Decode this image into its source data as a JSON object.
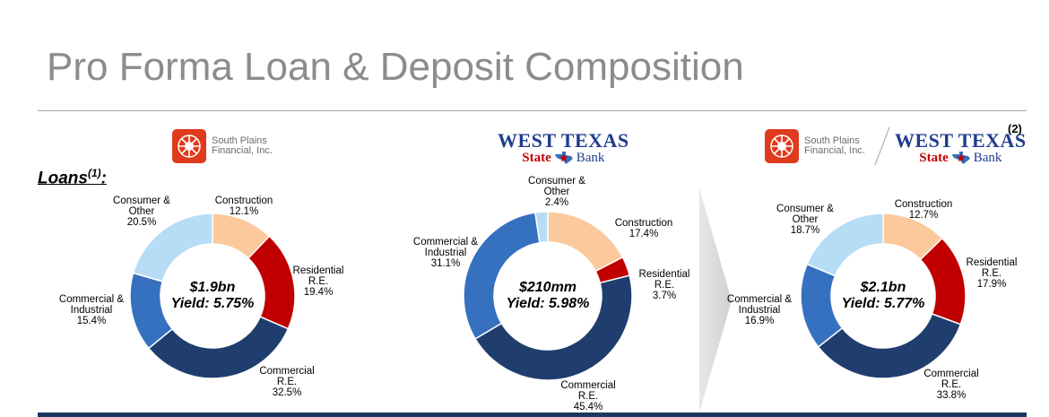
{
  "page": {
    "title": "Pro Forma Loan & Deposit Composition",
    "loans_label": "Loans",
    "loans_footnote": "(1)",
    "proforma_footnote": "(2)"
  },
  "logos": {
    "spf_line1": "South Plains",
    "spf_line2": "Financial, Inc.",
    "wt_top": "WEST TEXAS",
    "wt_state": "State",
    "wt_bank": "Bank"
  },
  "colors": {
    "construction": "#fcc99c",
    "residential": "#c00000",
    "commercial_re": "#1f3e6e",
    "commercial_industrial": "#3671c0",
    "consumer_other": "#b7dcf6",
    "bottom_bar": "#17375e",
    "title": "#8c8c8c"
  },
  "chart_data": [
    {
      "type": "pie",
      "donut": true,
      "entity": "South Plains Financial, Inc.",
      "center_value": "$1.9bn",
      "center_yield": "Yield: 5.75%",
      "categories": [
        "Construction",
        "Residential R.E.",
        "Commercial R.E.",
        "Commercial & Industrial",
        "Consumer & Other"
      ],
      "values": [
        12.1,
        19.4,
        32.5,
        15.4,
        20.5
      ],
      "labels": [
        {
          "lines": [
            "Construction",
            "12.1%"
          ]
        },
        {
          "lines": [
            "Residential",
            "R.E.",
            "19.4%"
          ]
        },
        {
          "lines": [
            "Commercial",
            "R.E.",
            "32.5%"
          ]
        },
        {
          "lines": [
            "Commercial &",
            "Industrial",
            "15.4%"
          ]
        },
        {
          "lines": [
            "Consumer &",
            "Other",
            "20.5%"
          ]
        }
      ]
    },
    {
      "type": "pie",
      "donut": true,
      "entity": "West Texas State Bank",
      "center_value": "$210mm",
      "center_yield": "Yield: 5.98%",
      "categories": [
        "Construction",
        "Residential R.E.",
        "Commercial R.E.",
        "Commercial & Industrial",
        "Consumer & Other"
      ],
      "values": [
        17.4,
        3.7,
        45.4,
        31.1,
        2.4
      ],
      "labels": [
        {
          "lines": [
            "Construction",
            "17.4%"
          ]
        },
        {
          "lines": [
            "Residential",
            "R.E.",
            "3.7%"
          ]
        },
        {
          "lines": [
            "Commercial",
            "R.E.",
            "45.4%"
          ]
        },
        {
          "lines": [
            "Commercial &",
            "Industrial",
            "31.1%"
          ]
        },
        {
          "lines": [
            "Consumer &",
            "Other",
            "2.4%"
          ]
        }
      ]
    },
    {
      "type": "pie",
      "donut": true,
      "entity": "Pro Forma",
      "center_value": "$2.1bn",
      "center_yield": "Yield: 5.77%",
      "categories": [
        "Construction",
        "Residential R.E.",
        "Commercial R.E.",
        "Commercial & Industrial",
        "Consumer & Other"
      ],
      "values": [
        12.7,
        17.9,
        33.8,
        16.9,
        18.7
      ],
      "labels": [
        {
          "lines": [
            "Construction",
            "12.7%"
          ]
        },
        {
          "lines": [
            "Residential",
            "R.E.",
            "17.9%"
          ]
        },
        {
          "lines": [
            "Commercial",
            "R.E.",
            "33.8%"
          ]
        },
        {
          "lines": [
            "Commercial &",
            "Industrial",
            "16.9%"
          ]
        },
        {
          "lines": [
            "Consumer &",
            "Other",
            "18.7%"
          ]
        }
      ]
    }
  ]
}
